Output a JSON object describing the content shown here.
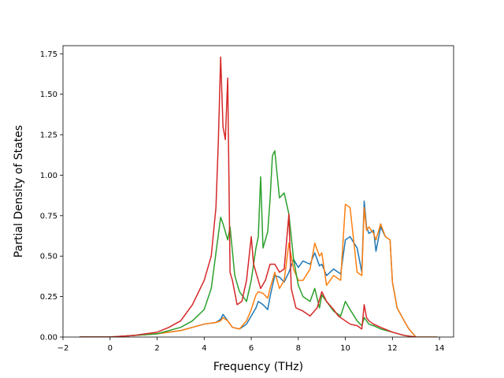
{
  "chart_data": {
    "type": "line",
    "xlabel": "Frequency (THz)",
    "ylabel": "Partial Density of States",
    "xlim": [
      -2.0,
      14.6
    ],
    "ylim": [
      0.0,
      1.8
    ],
    "xticks": [
      "−2",
      "0",
      "2",
      "4",
      "6",
      "8",
      "10",
      "12",
      "14"
    ],
    "xtick_values": [
      -2,
      0,
      2,
      4,
      6,
      8,
      10,
      12,
      14
    ],
    "yticks": [
      "0.00",
      "0.25",
      "0.50",
      "0.75",
      "1.00",
      "1.25",
      "1.50",
      "1.75"
    ],
    "ytick_values": [
      0,
      0.25,
      0.5,
      0.75,
      1.0,
      1.25,
      1.5,
      1.75
    ],
    "grid": false,
    "legend": "none",
    "series": [
      {
        "color": "#1f77b4",
        "x": [
          -1.3,
          0,
          1,
          2,
          3,
          3.5,
          4,
          4.5,
          4.7,
          4.8,
          5,
          5.2,
          5.5,
          5.8,
          6,
          6.2,
          6.3,
          6.5,
          6.7,
          6.8,
          7,
          7.2,
          7.4,
          7.6,
          7.8,
          8,
          8.2,
          8.5,
          8.7,
          8.9,
          9,
          9.2,
          9.5,
          9.8,
          10,
          10.2,
          10.5,
          10.7,
          10.8,
          10.9,
          11,
          11.2,
          11.3,
          11.5,
          11.7,
          11.9,
          12,
          12.2,
          12.5,
          12.7,
          13,
          13.9
        ],
        "y": [
          0,
          0,
          0.01,
          0.02,
          0.04,
          0.06,
          0.08,
          0.09,
          0.11,
          0.14,
          0.1,
          0.06,
          0.05,
          0.08,
          0.13,
          0.18,
          0.22,
          0.2,
          0.17,
          0.25,
          0.38,
          0.37,
          0.34,
          0.4,
          0.48,
          0.43,
          0.47,
          0.45,
          0.52,
          0.44,
          0.45,
          0.38,
          0.42,
          0.39,
          0.6,
          0.62,
          0.55,
          0.4,
          0.84,
          0.68,
          0.64,
          0.66,
          0.53,
          0.68,
          0.62,
          0.6,
          0.34,
          0.18,
          0.1,
          0.05,
          0,
          0
        ]
      },
      {
        "color": "#ff7f0e",
        "x": [
          -1.3,
          0,
          1,
          2,
          3,
          3.5,
          4,
          4.5,
          4.7,
          4.8,
          5,
          5.2,
          5.5,
          5.8,
          6,
          6.2,
          6.3,
          6.5,
          6.7,
          6.8,
          7,
          7.2,
          7.4,
          7.6,
          7.8,
          8,
          8.2,
          8.5,
          8.7,
          8.9,
          9,
          9.2,
          9.5,
          9.8,
          10,
          10.2,
          10.5,
          10.7,
          10.8,
          10.9,
          11,
          11.2,
          11.3,
          11.5,
          11.7,
          11.9,
          12,
          12.2,
          12.5,
          12.7,
          13,
          13.9
        ],
        "y": [
          0,
          0,
          0.01,
          0.02,
          0.04,
          0.06,
          0.08,
          0.09,
          0.1,
          0.12,
          0.1,
          0.06,
          0.05,
          0.1,
          0.17,
          0.26,
          0.28,
          0.27,
          0.24,
          0.3,
          0.4,
          0.3,
          0.35,
          0.58,
          0.42,
          0.35,
          0.35,
          0.42,
          0.58,
          0.5,
          0.52,
          0.32,
          0.38,
          0.35,
          0.82,
          0.8,
          0.4,
          0.38,
          0.8,
          0.66,
          0.68,
          0.64,
          0.6,
          0.7,
          0.62,
          0.6,
          0.34,
          0.18,
          0.1,
          0.05,
          0,
          0
        ]
      },
      {
        "color": "#2ca02c",
        "x": [
          -1.3,
          0,
          1,
          2,
          3,
          3.5,
          4,
          4.3,
          4.5,
          4.7,
          4.8,
          5,
          5.1,
          5.3,
          5.5,
          5.8,
          6,
          6.2,
          6.3,
          6.4,
          6.5,
          6.7,
          6.8,
          6.9,
          7,
          7.2,
          7.4,
          7.6,
          7.8,
          8,
          8.2,
          8.5,
          8.7,
          8.9,
          9,
          9.2,
          9.5,
          9.8,
          10,
          10.2,
          10.5,
          10.7,
          10.8,
          10.9,
          11,
          11.2,
          11.5,
          12,
          12.5,
          13
        ],
        "y": [
          0,
          0,
          0.01,
          0.02,
          0.06,
          0.1,
          0.17,
          0.3,
          0.52,
          0.74,
          0.7,
          0.6,
          0.68,
          0.38,
          0.28,
          0.22,
          0.35,
          0.55,
          0.62,
          0.99,
          0.55,
          0.65,
          0.85,
          1.12,
          1.15,
          0.86,
          0.89,
          0.76,
          0.48,
          0.32,
          0.25,
          0.22,
          0.3,
          0.18,
          0.26,
          0.22,
          0.16,
          0.13,
          0.22,
          0.17,
          0.1,
          0.07,
          0.12,
          0.1,
          0.08,
          0.07,
          0.05,
          0.03,
          0.01,
          0
        ]
      },
      {
        "color": "#d62728",
        "x": [
          -1.3,
          0,
          1,
          2,
          2.5,
          3,
          3.5,
          4,
          4.3,
          4.5,
          4.6,
          4.7,
          4.8,
          4.9,
          5,
          5.1,
          5.2,
          5.4,
          5.6,
          5.8,
          6,
          6.1,
          6.2,
          6.4,
          6.6,
          6.8,
          7,
          7.2,
          7.4,
          7.6,
          7.7,
          7.9,
          8.2,
          8.5,
          8.8,
          9,
          9.2,
          9.5,
          9.7,
          10,
          10.2,
          10.5,
          10.7,
          10.8,
          10.9,
          11,
          11.2,
          11.5,
          12,
          12.5,
          13
        ],
        "y": [
          0,
          0,
          0.01,
          0.03,
          0.06,
          0.1,
          0.2,
          0.35,
          0.5,
          0.8,
          1.2,
          1.73,
          1.3,
          1.22,
          1.6,
          0.4,
          0.35,
          0.2,
          0.22,
          0.35,
          0.62,
          0.45,
          0.4,
          0.3,
          0.35,
          0.45,
          0.45,
          0.4,
          0.42,
          0.76,
          0.3,
          0.18,
          0.16,
          0.13,
          0.18,
          0.28,
          0.22,
          0.17,
          0.13,
          0.1,
          0.08,
          0.07,
          0.05,
          0.2,
          0.12,
          0.1,
          0.08,
          0.06,
          0.03,
          0.01,
          0
        ]
      }
    ]
  }
}
